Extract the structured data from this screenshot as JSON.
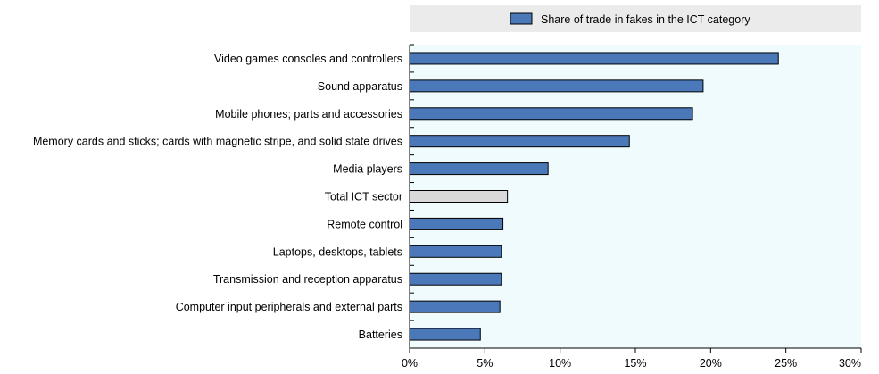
{
  "chart_data": {
    "type": "bar",
    "orientation": "horizontal",
    "categories": [
      "Video games consoles and controllers",
      "Sound apparatus",
      "Mobile phones; parts and accessories",
      "Memory cards and sticks; cards with magnetic stripe, and solid state drives",
      "Media players",
      "Total ICT sector",
      "Remote control",
      "Laptops, desktops, tablets",
      "Transmission and reception apparatus",
      "Computer input peripherals and external parts",
      "Batteries"
    ],
    "series": [
      {
        "name": "Share of trade in fakes in the ICT category",
        "values": [
          24.5,
          19.5,
          18.8,
          14.6,
          9.2,
          6.5,
          6.2,
          6.1,
          6.1,
          6.0,
          4.7
        ]
      }
    ],
    "highlight_category": "Total ICT sector",
    "xlim": [
      0,
      30
    ],
    "xticks": [
      0,
      5,
      10,
      15,
      20,
      25,
      30
    ],
    "xtick_labels": [
      "0%",
      "5%",
      "10%",
      "15%",
      "20%",
      "25%",
      "30%"
    ],
    "value_unit": "%",
    "grid": false,
    "legend_position": "top",
    "colors": {
      "bar": "#4a78b8",
      "highlight_bar": "#d9d9d9",
      "plot_background": "#f0fbfd",
      "legend_background": "#ebebeb",
      "bar_edge": "#000000"
    }
  }
}
